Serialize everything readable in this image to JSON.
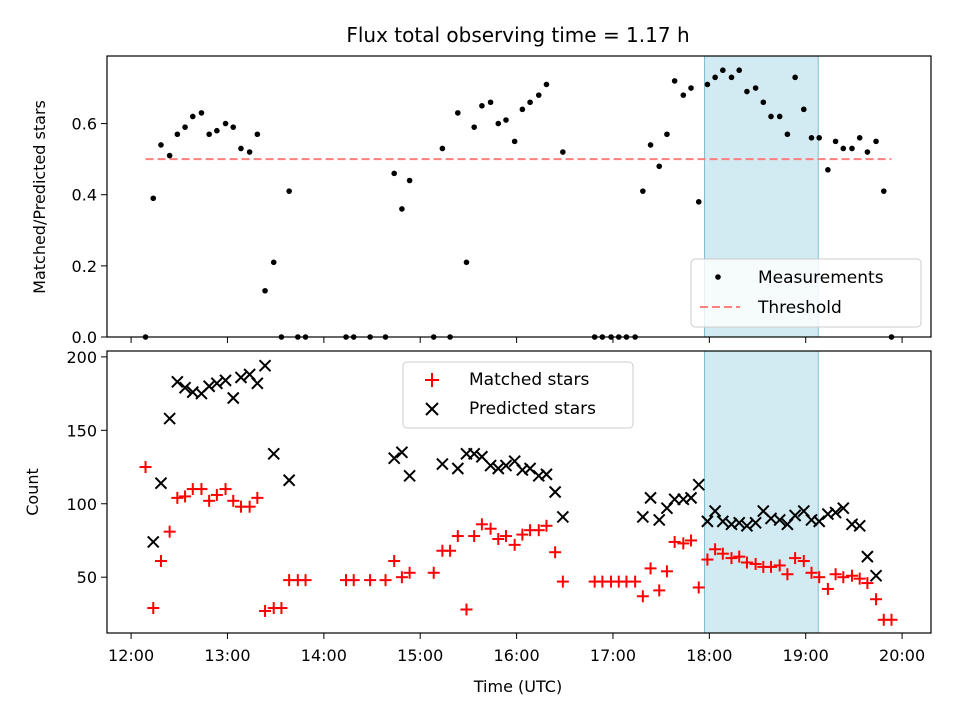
{
  "title": "Flux total observing time = 1.17 h",
  "colors": {
    "measure": "#000000",
    "threshold": "#ff7f7f",
    "matched": "#ff0000",
    "predicted": "#000000",
    "span": "#add8e6"
  },
  "x_ticks": [
    "12:00",
    "13:00",
    "14:00",
    "15:00",
    "16:00",
    "17:00",
    "18:00",
    "19:00",
    "20:00"
  ],
  "chart_data": [
    {
      "type": "scatter",
      "ylabel": "Matched/Predicted stars",
      "xlim_hours": [
        11.75,
        20.3
      ],
      "ylim": [
        0,
        0.79
      ],
      "yticks": [
        "0.0",
        "0.2",
        "0.4",
        "0.6"
      ],
      "shaded_span_hours": [
        17.95,
        19.13
      ],
      "threshold": 0.5,
      "legend": [
        "Measurements",
        "Threshold"
      ],
      "legend_loc": "lower right",
      "series": [
        {
          "name": "Measurements",
          "points": [
            [
              12.15,
              0.0
            ],
            [
              12.23,
              0.39
            ],
            [
              12.31,
              0.54
            ],
            [
              12.4,
              0.51
            ],
            [
              12.48,
              0.57
            ],
            [
              12.56,
              0.59
            ],
            [
              12.64,
              0.62
            ],
            [
              12.73,
              0.63
            ],
            [
              12.81,
              0.57
            ],
            [
              12.89,
              0.58
            ],
            [
              12.98,
              0.6
            ],
            [
              13.06,
              0.59
            ],
            [
              13.14,
              0.53
            ],
            [
              13.23,
              0.52
            ],
            [
              13.31,
              0.57
            ],
            [
              13.39,
              0.13
            ],
            [
              13.48,
              0.21
            ],
            [
              13.56,
              0.0
            ],
            [
              13.64,
              0.41
            ],
            [
              13.73,
              0.0
            ],
            [
              13.81,
              0.0
            ],
            [
              14.23,
              0.0
            ],
            [
              14.31,
              0.0
            ],
            [
              14.48,
              0.0
            ],
            [
              14.64,
              0.0
            ],
            [
              14.73,
              0.46
            ],
            [
              14.81,
              0.36
            ],
            [
              14.89,
              0.44
            ],
            [
              15.14,
              0.0
            ],
            [
              15.23,
              0.53
            ],
            [
              15.31,
              0.0
            ],
            [
              15.39,
              0.63
            ],
            [
              15.48,
              0.21
            ],
            [
              15.56,
              0.59
            ],
            [
              15.64,
              0.65
            ],
            [
              15.73,
              0.66
            ],
            [
              15.81,
              0.6
            ],
            [
              15.89,
              0.61
            ],
            [
              15.98,
              0.55
            ],
            [
              16.06,
              0.64
            ],
            [
              16.14,
              0.66
            ],
            [
              16.23,
              0.68
            ],
            [
              16.31,
              0.71
            ],
            [
              16.48,
              0.52
            ],
            [
              16.81,
              0.0
            ],
            [
              16.89,
              0.0
            ],
            [
              16.98,
              0.0
            ],
            [
              17.06,
              0.0
            ],
            [
              17.14,
              0.0
            ],
            [
              17.23,
              0.0
            ],
            [
              17.31,
              0.41
            ],
            [
              17.39,
              0.54
            ],
            [
              17.48,
              0.48
            ],
            [
              17.56,
              0.57
            ],
            [
              17.64,
              0.72
            ],
            [
              17.73,
              0.68
            ],
            [
              17.81,
              0.7
            ],
            [
              17.89,
              0.38
            ],
            [
              17.98,
              0.71
            ],
            [
              18.06,
              0.73
            ],
            [
              18.14,
              0.75
            ],
            [
              18.23,
              0.73
            ],
            [
              18.31,
              0.75
            ],
            [
              18.39,
              0.69
            ],
            [
              18.48,
              0.7
            ],
            [
              18.56,
              0.66
            ],
            [
              18.64,
              0.62
            ],
            [
              18.73,
              0.62
            ],
            [
              18.81,
              0.57
            ],
            [
              18.89,
              0.73
            ],
            [
              18.98,
              0.64
            ],
            [
              19.06,
              0.56
            ],
            [
              19.14,
              0.56
            ],
            [
              19.23,
              0.47
            ],
            [
              19.31,
              0.55
            ],
            [
              19.39,
              0.53
            ],
            [
              19.48,
              0.53
            ],
            [
              19.56,
              0.56
            ],
            [
              19.64,
              0.52
            ],
            [
              19.73,
              0.55
            ],
            [
              19.81,
              0.41
            ],
            [
              19.89,
              0.0
            ]
          ]
        },
        {
          "name": "Threshold",
          "y": 0.5,
          "x_range_hours": [
            12.15,
            19.89
          ]
        }
      ]
    },
    {
      "type": "scatter",
      "xlabel": "Time (UTC)",
      "ylabel": "Count",
      "xlim_hours": [
        11.75,
        20.3
      ],
      "ylim": [
        12,
        204
      ],
      "yticks": [
        "50",
        "100",
        "150",
        "200"
      ],
      "shaded_span_hours": [
        17.95,
        19.13
      ],
      "legend": [
        "Matched stars",
        "Predicted stars"
      ],
      "legend_loc": "upper center",
      "series": [
        {
          "name": "Matched stars",
          "marker": "+",
          "points": [
            [
              12.15,
              125
            ],
            [
              12.23,
              29
            ],
            [
              12.31,
              61
            ],
            [
              12.4,
              81
            ],
            [
              12.48,
              104
            ],
            [
              12.56,
              105
            ],
            [
              12.64,
              110
            ],
            [
              12.73,
              110
            ],
            [
              12.81,
              102
            ],
            [
              12.89,
              106
            ],
            [
              12.98,
              110
            ],
            [
              13.06,
              102
            ],
            [
              13.14,
              98
            ],
            [
              13.23,
              98
            ],
            [
              13.31,
              104
            ],
            [
              13.39,
              27
            ],
            [
              13.48,
              29
            ],
            [
              13.56,
              29
            ],
            [
              13.64,
              48
            ],
            [
              13.73,
              48
            ],
            [
              13.81,
              48
            ],
            [
              14.23,
              48
            ],
            [
              14.31,
              48
            ],
            [
              14.48,
              48
            ],
            [
              14.64,
              48
            ],
            [
              14.73,
              61
            ],
            [
              14.81,
              50
            ],
            [
              14.89,
              53
            ],
            [
              15.14,
              53
            ],
            [
              15.23,
              68
            ],
            [
              15.31,
              68
            ],
            [
              15.39,
              78
            ],
            [
              15.48,
              28
            ],
            [
              15.56,
              78
            ],
            [
              15.64,
              86
            ],
            [
              15.73,
              83
            ],
            [
              15.81,
              76
            ],
            [
              15.89,
              78
            ],
            [
              15.98,
              72
            ],
            [
              16.06,
              79
            ],
            [
              16.14,
              82
            ],
            [
              16.23,
              82
            ],
            [
              16.31,
              85
            ],
            [
              16.4,
              67
            ],
            [
              16.48,
              47
            ],
            [
              16.81,
              47
            ],
            [
              16.89,
              47
            ],
            [
              16.98,
              47
            ],
            [
              17.06,
              47
            ],
            [
              17.14,
              47
            ],
            [
              17.23,
              47
            ],
            [
              17.31,
              37
            ],
            [
              17.39,
              56
            ],
            [
              17.48,
              41
            ],
            [
              17.56,
              54
            ],
            [
              17.64,
              74
            ],
            [
              17.73,
              73
            ],
            [
              17.81,
              75
            ],
            [
              17.89,
              43
            ],
            [
              17.98,
              62
            ],
            [
              18.06,
              69
            ],
            [
              18.14,
              66
            ],
            [
              18.23,
              63
            ],
            [
              18.31,
              64
            ],
            [
              18.39,
              60
            ],
            [
              18.48,
              59
            ],
            [
              18.56,
              57
            ],
            [
              18.64,
              57
            ],
            [
              18.73,
              58
            ],
            [
              18.81,
              52
            ],
            [
              18.89,
              63
            ],
            [
              18.98,
              61
            ],
            [
              19.06,
              53
            ],
            [
              19.14,
              50
            ],
            [
              19.23,
              42
            ],
            [
              19.31,
              52
            ],
            [
              19.39,
              50
            ],
            [
              19.48,
              51
            ],
            [
              19.56,
              49
            ],
            [
              19.64,
              46
            ],
            [
              19.73,
              35
            ],
            [
              19.81,
              21
            ],
            [
              19.89,
              21
            ]
          ]
        },
        {
          "name": "Predicted stars",
          "marker": "x",
          "points": [
            [
              12.23,
              74
            ],
            [
              12.31,
              114
            ],
            [
              12.4,
              158
            ],
            [
              12.48,
              183
            ],
            [
              12.56,
              179
            ],
            [
              12.64,
              176
            ],
            [
              12.73,
              175
            ],
            [
              12.81,
              180
            ],
            [
              12.89,
              182
            ],
            [
              12.98,
              184
            ],
            [
              13.06,
              172
            ],
            [
              13.14,
              186
            ],
            [
              13.23,
              188
            ],
            [
              13.31,
              182
            ],
            [
              13.39,
              194
            ],
            [
              13.48,
              134
            ],
            [
              13.64,
              116
            ],
            [
              14.73,
              131
            ],
            [
              14.81,
              135
            ],
            [
              14.89,
              119
            ],
            [
              15.23,
              127
            ],
            [
              15.39,
              124
            ],
            [
              15.48,
              134
            ],
            [
              15.56,
              134
            ],
            [
              15.64,
              132
            ],
            [
              15.73,
              126
            ],
            [
              15.81,
              124
            ],
            [
              15.89,
              126
            ],
            [
              15.98,
              129
            ],
            [
              16.06,
              123
            ],
            [
              16.14,
              124
            ],
            [
              16.23,
              119
            ],
            [
              16.31,
              120
            ],
            [
              16.4,
              108
            ],
            [
              16.48,
              91
            ],
            [
              17.31,
              91
            ],
            [
              17.39,
              104
            ],
            [
              17.48,
              89
            ],
            [
              17.56,
              97
            ],
            [
              17.64,
              103
            ],
            [
              17.73,
              103
            ],
            [
              17.81,
              104
            ],
            [
              17.89,
              113
            ],
            [
              17.98,
              88
            ],
            [
              18.06,
              95
            ],
            [
              18.14,
              88
            ],
            [
              18.23,
              86
            ],
            [
              18.31,
              87
            ],
            [
              18.39,
              85
            ],
            [
              18.48,
              87
            ],
            [
              18.56,
              95
            ],
            [
              18.64,
              90
            ],
            [
              18.73,
              89
            ],
            [
              18.81,
              86
            ],
            [
              18.89,
              92
            ],
            [
              18.98,
              95
            ],
            [
              19.06,
              89
            ],
            [
              19.14,
              88
            ],
            [
              19.23,
              93
            ],
            [
              19.31,
              94
            ],
            [
              19.39,
              97
            ],
            [
              19.48,
              86
            ],
            [
              19.56,
              85
            ],
            [
              19.64,
              64
            ],
            [
              19.73,
              51
            ]
          ]
        }
      ]
    }
  ]
}
